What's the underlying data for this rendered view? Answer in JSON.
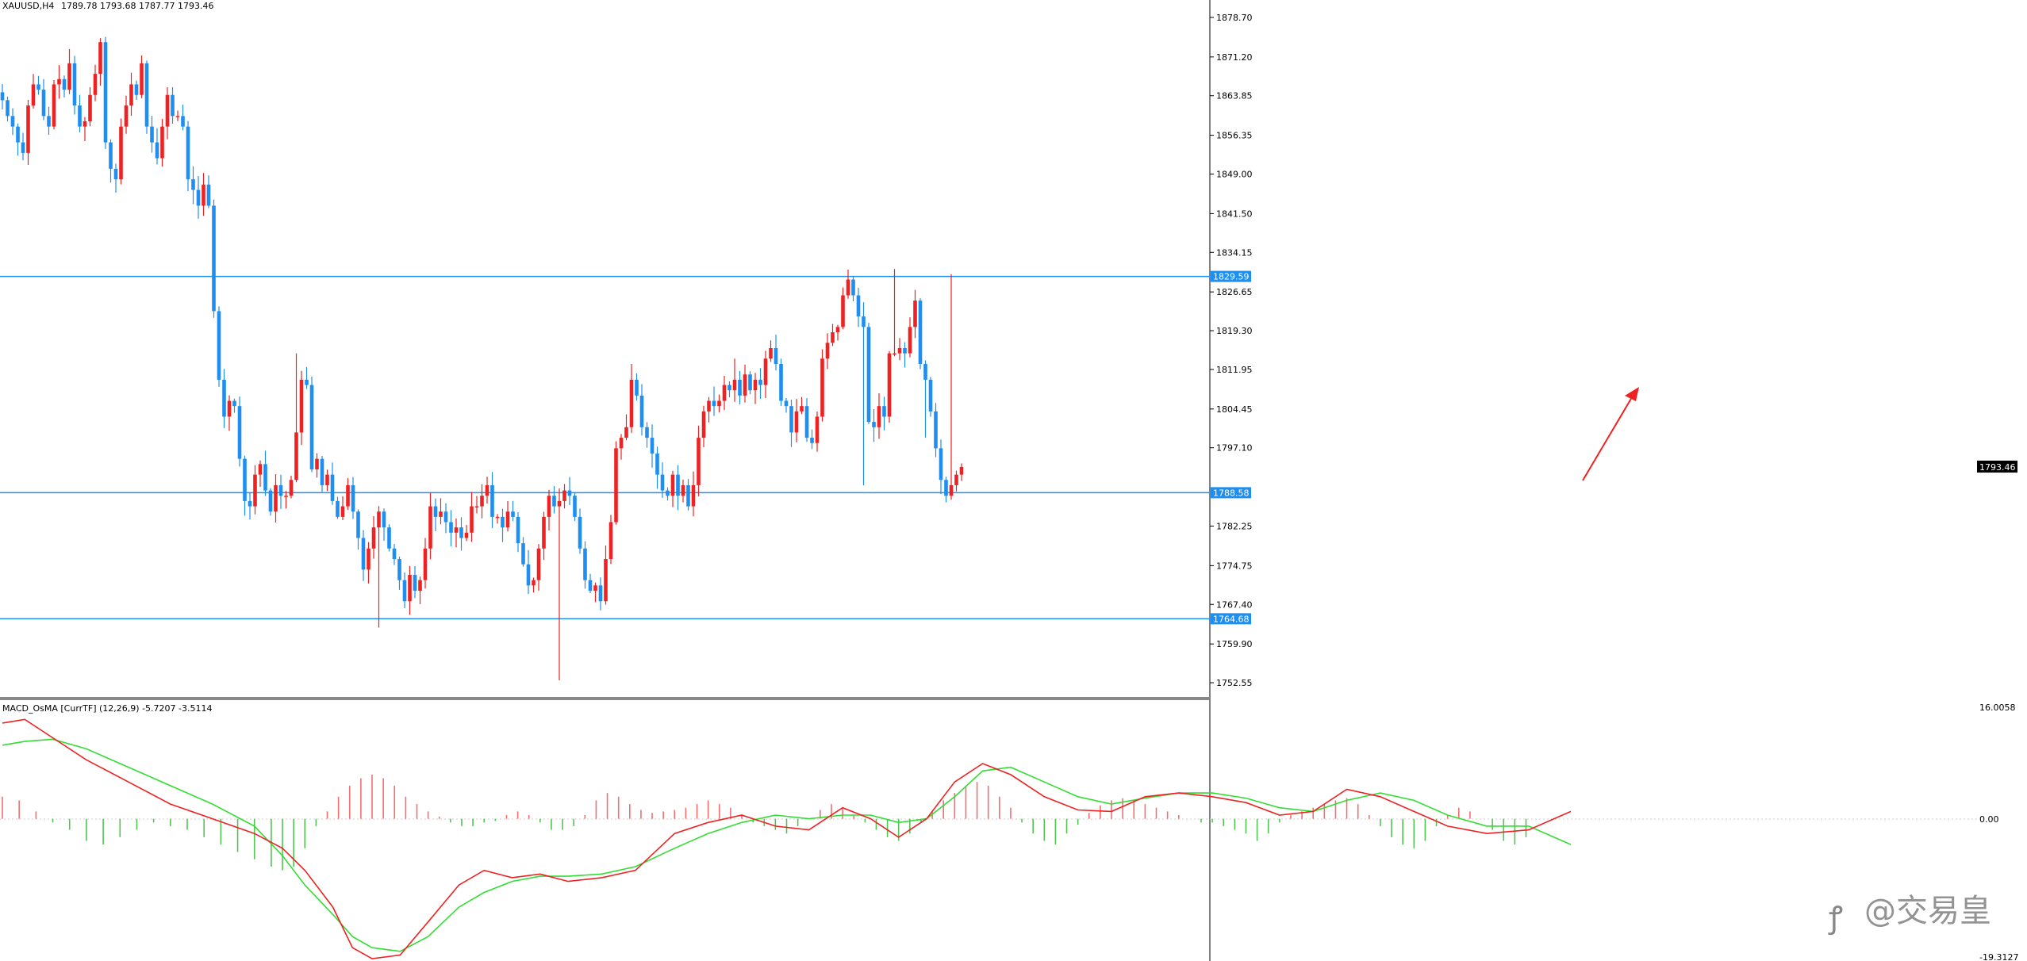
{
  "header": {
    "symbol": "XAUUSD,H4",
    "ohlc": "1789.78 1793.68 1787.77 1793.46"
  },
  "indicator": {
    "label": "MACD_OsMA [CurrTF] (12,26,9) -5.7207 -3.5114",
    "scale_top": "16.0058",
    "scale_zero": "0.00",
    "scale_bottom": "-19.3127"
  },
  "watermark": {
    "text": "@交易皇"
  },
  "colors": {
    "bull": "#ee2222",
    "bear": "#1e8ef0",
    "level": "#1e8ef0",
    "macd": "#ee2222",
    "signal": "#33dd33",
    "hist_pos": "#ee3333",
    "hist_neg": "#33bb33",
    "arrow": "#ee2222"
  },
  "chart_data": [
    {
      "type": "candlestick",
      "ylim": [
        1750,
        1882
      ],
      "yticks": [
        "1878.70",
        "1871.20",
        "1863.85",
        "1856.35",
        "1849.00",
        "1841.50",
        "1834.15",
        "1826.65",
        "1819.30",
        "1811.95",
        "1804.45",
        "1797.10",
        "1782.25",
        "1774.75",
        "1767.40",
        "1759.90",
        "1752.55"
      ],
      "y_values": [
        1878.7,
        1871.2,
        1863.85,
        1856.35,
        1849.0,
        1841.5,
        1834.15,
        1826.65,
        1819.3,
        1811.95,
        1804.45,
        1797.1,
        1782.25,
        1774.75,
        1767.4,
        1759.9,
        1752.55
      ],
      "current_price": "1793.46",
      "levels": [
        {
          "price": 1829.59,
          "label": "1829.59"
        },
        {
          "price": 1788.58,
          "label": "1788.58"
        },
        {
          "price": 1764.68,
          "label": "1764.68"
        }
      ],
      "path": [
        1863,
        1860,
        1858,
        1855,
        1853,
        1862,
        1866,
        1865,
        1860,
        1858,
        1866,
        1867,
        1865,
        1870,
        1862,
        1858,
        1859,
        1864,
        1868,
        1874,
        1855,
        1850,
        1848,
        1858,
        1862,
        1866,
        1864,
        1870,
        1858,
        1855,
        1852,
        1858,
        1864,
        1860,
        1860,
        1858,
        1848,
        1846,
        1843,
        1847,
        1843,
        1823,
        1810,
        1803,
        1806,
        1805,
        1795,
        1787,
        1786,
        1792,
        1794,
        1789,
        1785,
        1790,
        1788,
        1788,
        1791,
        1800,
        1810,
        1809,
        1793,
        1795,
        1790,
        1792,
        1787,
        1784,
        1786,
        1790,
        1785,
        1780,
        1774,
        1778,
        1782,
        1785,
        1782,
        1778,
        1776,
        1772,
        1768,
        1773,
        1770,
        1772,
        1778,
        1786,
        1784,
        1785,
        1783,
        1781,
        1782,
        1780,
        1781,
        1786,
        1786,
        1788,
        1790,
        1784,
        1784,
        1782,
        1785,
        1784,
        1779,
        1775,
        1771,
        1772,
        1778,
        1784,
        1788,
        1786,
        1787,
        1789,
        1788,
        1784,
        1778,
        1772,
        1770,
        1771,
        1768,
        1776,
        1783,
        1797,
        1799,
        1801,
        1810,
        1807,
        1801,
        1799,
        1796,
        1792,
        1789,
        1788,
        1792,
        1788,
        1790,
        1786,
        1790,
        1799,
        1804,
        1806,
        1805,
        1806,
        1809,
        1808,
        1810,
        1807,
        1811,
        1808,
        1810,
        1809,
        1814,
        1816,
        1813,
        1806,
        1805,
        1800,
        1804,
        1805,
        1799,
        1798,
        1803,
        1814,
        1817,
        1819,
        1820,
        1826,
        1829,
        1826,
        1822,
        1820,
        1802,
        1801,
        1805,
        1803,
        1815,
        1815,
        1816,
        1815,
        1820,
        1825,
        1813,
        1810,
        1804,
        1797,
        1791,
        1788,
        1790,
        1792,
        1793.46
      ],
      "extremes": [
        {
          "i": 20,
          "high": 1875
        },
        {
          "i": 57,
          "high": 1815
        },
        {
          "i": 73,
          "low": 1763
        },
        {
          "i": 108,
          "low": 1753
        },
        {
          "i": 122,
          "high": 1813
        },
        {
          "i": 142,
          "high": 1814
        },
        {
          "i": 167,
          "low": 1790
        },
        {
          "i": 173,
          "high": 1831
        },
        {
          "i": 179,
          "low": 1799
        },
        {
          "i": 184,
          "high": 1830
        },
        {
          "i": 195,
          "low": 1787
        }
      ]
    },
    {
      "type": "line",
      "name": "MACD_OsMA",
      "ylim": [
        -19.3127,
        16.0058
      ],
      "macd": [
        [
          0,
          13
        ],
        [
          8,
          13.5
        ],
        [
          18,
          11
        ],
        [
          30,
          8
        ],
        [
          45,
          5
        ],
        [
          60,
          2
        ],
        [
          75,
          0
        ],
        [
          90,
          -2
        ],
        [
          100,
          -4
        ],
        [
          108,
          -7
        ],
        [
          118,
          -12
        ],
        [
          125,
          -17.5
        ],
        [
          132,
          -19
        ],
        [
          142,
          -18.5
        ],
        [
          152,
          -14
        ],
        [
          163,
          -9
        ],
        [
          172,
          -7
        ],
        [
          182,
          -8
        ],
        [
          192,
          -7.5
        ],
        [
          202,
          -8.5
        ],
        [
          214,
          -8
        ],
        [
          226,
          -7
        ],
        [
          240,
          -2
        ],
        [
          252,
          -0.5
        ],
        [
          264,
          0.5
        ],
        [
          276,
          -1
        ],
        [
          288,
          -1.5
        ],
        [
          300,
          1.5
        ],
        [
          310,
          0
        ],
        [
          320,
          -2.5
        ],
        [
          330,
          0
        ],
        [
          340,
          5
        ],
        [
          350,
          7.5
        ],
        [
          360,
          6
        ],
        [
          372,
          3
        ],
        [
          384,
          1.2
        ],
        [
          396,
          1
        ],
        [
          408,
          3
        ],
        [
          420,
          3.5
        ],
        [
          432,
          3
        ],
        [
          444,
          2.2
        ],
        [
          456,
          0.5
        ],
        [
          468,
          1
        ],
        [
          480,
          4
        ],
        [
          492,
          3
        ],
        [
          504,
          1
        ],
        [
          516,
          -1
        ],
        [
          530,
          -2
        ],
        [
          545,
          -1.5
        ],
        [
          560,
          1
        ]
      ],
      "signal": [
        [
          0,
          10
        ],
        [
          8,
          10.5
        ],
        [
          18,
          10.8
        ],
        [
          30,
          9.5
        ],
        [
          45,
          7
        ],
        [
          60,
          4.5
        ],
        [
          75,
          2
        ],
        [
          90,
          -1
        ],
        [
          100,
          -5
        ],
        [
          108,
          -9
        ],
        [
          118,
          -13
        ],
        [
          125,
          -16
        ],
        [
          132,
          -17.5
        ],
        [
          142,
          -18
        ],
        [
          152,
          -16
        ],
        [
          163,
          -12
        ],
        [
          172,
          -10
        ],
        [
          182,
          -8.5
        ],
        [
          192,
          -7.8
        ],
        [
          202,
          -7.8
        ],
        [
          214,
          -7.5
        ],
        [
          226,
          -6.5
        ],
        [
          240,
          -4
        ],
        [
          252,
          -2
        ],
        [
          264,
          -0.5
        ],
        [
          276,
          0.5
        ],
        [
          288,
          0
        ],
        [
          300,
          0.5
        ],
        [
          310,
          0.5
        ],
        [
          320,
          -0.5
        ],
        [
          330,
          0
        ],
        [
          340,
          3
        ],
        [
          350,
          6.5
        ],
        [
          360,
          7
        ],
        [
          372,
          5
        ],
        [
          384,
          3
        ],
        [
          396,
          2
        ],
        [
          408,
          2.8
        ],
        [
          420,
          3.5
        ],
        [
          432,
          3.5
        ],
        [
          444,
          2.8
        ],
        [
          456,
          1.5
        ],
        [
          468,
          1
        ],
        [
          480,
          2.5
        ],
        [
          492,
          3.5
        ],
        [
          504,
          2.5
        ],
        [
          516,
          0.5
        ],
        [
          530,
          -1
        ],
        [
          545,
          -1
        ],
        [
          560,
          -3.5
        ]
      ],
      "histogram": [
        [
          0,
          3
        ],
        [
          6,
          2.5
        ],
        [
          12,
          1
        ],
        [
          18,
          -0.5
        ],
        [
          24,
          -1.5
        ],
        [
          30,
          -3
        ],
        [
          36,
          -3.5
        ],
        [
          42,
          -2.5
        ],
        [
          48,
          -1.5
        ],
        [
          54,
          -0.5
        ],
        [
          60,
          -1
        ],
        [
          66,
          -1.5
        ],
        [
          72,
          -2.5
        ],
        [
          78,
          -3.5
        ],
        [
          84,
          -4.5
        ],
        [
          90,
          -5.5
        ],
        [
          96,
          -6.5
        ],
        [
          100,
          -7
        ],
        [
          104,
          -6.5
        ],
        [
          108,
          -4
        ],
        [
          112,
          -1
        ],
        [
          116,
          1
        ],
        [
          120,
          3
        ],
        [
          124,
          4.5
        ],
        [
          128,
          5.5
        ],
        [
          132,
          6
        ],
        [
          136,
          5.5
        ],
        [
          140,
          4.5
        ],
        [
          144,
          3
        ],
        [
          148,
          2
        ],
        [
          152,
          1
        ],
        [
          156,
          0.3
        ],
        [
          160,
          -0.5
        ],
        [
          164,
          -1
        ],
        [
          168,
          -1
        ],
        [
          172,
          -0.5
        ],
        [
          176,
          -0.3
        ],
        [
          180,
          0.5
        ],
        [
          184,
          1
        ],
        [
          188,
          0.5
        ],
        [
          192,
          -0.5
        ],
        [
          196,
          -1.5
        ],
        [
          200,
          -1.5
        ],
        [
          204,
          -1
        ],
        [
          208,
          0.5
        ],
        [
          212,
          2.5
        ],
        [
          216,
          3.5
        ],
        [
          220,
          3
        ],
        [
          224,
          2
        ],
        [
          228,
          1.2
        ],
        [
          232,
          0.8
        ],
        [
          236,
          1
        ],
        [
          240,
          1.2
        ],
        [
          244,
          1.5
        ],
        [
          248,
          2
        ],
        [
          252,
          2.5
        ],
        [
          256,
          2
        ],
        [
          260,
          1.5
        ],
        [
          264,
          0.5
        ],
        [
          268,
          -0.5
        ],
        [
          272,
          -1
        ],
        [
          276,
          -1.5
        ],
        [
          280,
          -2
        ],
        [
          284,
          -1
        ],
        [
          288,
          0
        ],
        [
          292,
          1.2
        ],
        [
          296,
          2
        ],
        [
          300,
          1.5
        ],
        [
          304,
          0.5
        ],
        [
          308,
          -0.5
        ],
        [
          312,
          -1.5
        ],
        [
          316,
          -2.5
        ],
        [
          320,
          -3
        ],
        [
          324,
          -2
        ],
        [
          328,
          -0.5
        ],
        [
          332,
          1
        ],
        [
          336,
          2.5
        ],
        [
          340,
          3.5
        ],
        [
          344,
          4.5
        ],
        [
          348,
          5
        ],
        [
          352,
          4.5
        ],
        [
          356,
          3
        ],
        [
          360,
          1.5
        ],
        [
          364,
          -0.5
        ],
        [
          368,
          -2
        ],
        [
          372,
          -3
        ],
        [
          376,
          -3.5
        ],
        [
          380,
          -2
        ],
        [
          384,
          -0.8
        ],
        [
          388,
          0.8
        ],
        [
          392,
          1.8
        ],
        [
          396,
          2.5
        ],
        [
          400,
          2.8
        ],
        [
          404,
          2.5
        ],
        [
          408,
          2
        ],
        [
          412,
          1.5
        ],
        [
          416,
          1
        ],
        [
          420,
          0.5
        ],
        [
          424,
          0
        ],
        [
          428,
          -0.5
        ],
        [
          432,
          -0.5
        ],
        [
          436,
          -1
        ],
        [
          440,
          -1.5
        ],
        [
          444,
          -2
        ],
        [
          448,
          -3
        ],
        [
          452,
          -2
        ],
        [
          456,
          -0.5
        ],
        [
          460,
          0.5
        ],
        [
          464,
          1
        ],
        [
          468,
          1.5
        ],
        [
          472,
          2
        ],
        [
          476,
          2.5
        ],
        [
          480,
          2.8
        ],
        [
          484,
          2
        ],
        [
          488,
          0.5
        ],
        [
          492,
          -1
        ],
        [
          496,
          -2.5
        ],
        [
          500,
          -3.5
        ],
        [
          504,
          -4
        ],
        [
          508,
          -3
        ],
        [
          512,
          -1
        ],
        [
          516,
          0.5
        ],
        [
          520,
          1.5
        ],
        [
          524,
          1
        ],
        [
          528,
          0
        ],
        [
          532,
          -1.5
        ],
        [
          536,
          -3
        ],
        [
          540,
          -3.5
        ],
        [
          544,
          -2.5
        ]
      ]
    }
  ]
}
